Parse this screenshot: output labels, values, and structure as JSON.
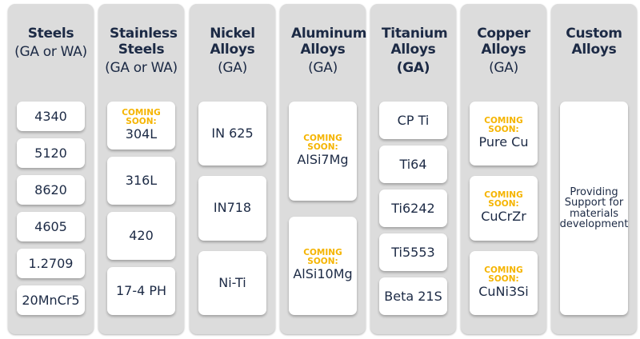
{
  "columns": [
    {
      "title": "Steels",
      "sub": "(GA or WA)",
      "gap": 9,
      "cards": [
        {
          "name": "4340"
        },
        {
          "name": "5120"
        },
        {
          "name": "8620"
        },
        {
          "name": "4605"
        },
        {
          "name": "1.2709"
        },
        {
          "name": "20MnCr5"
        }
      ]
    },
    {
      "title": "Stainless Steels",
      "sub": "(GA or WA)",
      "gap": 9,
      "cards": [
        {
          "name": "304L",
          "coming": "COMING SOON:"
        },
        {
          "name": "316L"
        },
        {
          "name": "420"
        },
        {
          "name": "17-4 PH"
        }
      ]
    },
    {
      "title": "Nickel Alloys",
      "sub": "(GA)",
      "gap": 13,
      "cards": [
        {
          "name": "IN 625"
        },
        {
          "name": "IN718"
        },
        {
          "name": "Ni-Ti"
        }
      ]
    },
    {
      "title": "Aluminum Alloys",
      "sub": "(GA)",
      "gap": 20,
      "cards": [
        {
          "name": "AlSi7Mg",
          "coming": "COMING SOON:"
        },
        {
          "name": "AlSi10Mg",
          "coming": "COMING SOON:"
        }
      ]
    },
    {
      "title": "Titanium Alloys",
      "sub": "(GA)",
      "sub_bold": true,
      "gap": 8,
      "cards": [
        {
          "name": "CP Ti"
        },
        {
          "name": "Ti64"
        },
        {
          "name": "Ti6242"
        },
        {
          "name": "Ti5553"
        },
        {
          "name": "Beta 21S"
        }
      ]
    },
    {
      "title": "Copper Alloys",
      "sub": "(GA)",
      "gap": 13,
      "cards": [
        {
          "name": "Pure Cu",
          "coming": "COMING SOON:"
        },
        {
          "name": "CuCrZr",
          "coming": "COMING SOON:"
        },
        {
          "name": "CuNi3Si",
          "coming": "COMING SOON:"
        }
      ]
    },
    {
      "title": "Custom Alloys",
      "sub": "",
      "gap": 0,
      "cards": [
        {
          "desc": "Providing Support for materials development"
        }
      ]
    }
  ],
  "colors": {
    "text": "#1c2a45",
    "coming_soon": "#f5b400",
    "panel": "#dcdcdc"
  }
}
